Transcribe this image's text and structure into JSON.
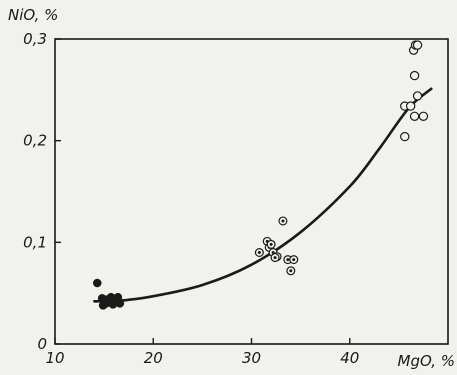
{
  "chart_data": {
    "type": "scatter",
    "title": "",
    "xlabel": "MgO, %",
    "ylabel": "NiO, %",
    "xlim": [
      10,
      50
    ],
    "ylim": [
      0,
      0.3
    ],
    "x_ticks": [
      {
        "value": 10,
        "label": "10"
      },
      {
        "value": 20,
        "label": "20"
      },
      {
        "value": 30,
        "label": "30"
      },
      {
        "value": 40,
        "label": "40"
      }
    ],
    "y_ticks": [
      {
        "value": 0,
        "label": "0"
      },
      {
        "value": 0.1,
        "label": "0,1"
      },
      {
        "value": 0.2,
        "label": "0,2"
      },
      {
        "value": 0.3,
        "label": "0,3"
      }
    ],
    "grid": false,
    "legend": "none",
    "colors": {
      "ink": "#1a1a1a",
      "background": "#f1f1ee"
    },
    "series": [
      {
        "marker": "filled-circle",
        "points": [
          {
            "x": 14.3,
            "y": 0.06
          },
          {
            "x": 14.8,
            "y": 0.045
          },
          {
            "x": 15.2,
            "y": 0.04
          },
          {
            "x": 15.7,
            "y": 0.046
          },
          {
            "x": 16.2,
            "y": 0.043
          },
          {
            "x": 16.6,
            "y": 0.04
          },
          {
            "x": 14.9,
            "y": 0.038
          },
          {
            "x": 15.9,
            "y": 0.039
          },
          {
            "x": 15.4,
            "y": 0.044
          },
          {
            "x": 16.4,
            "y": 0.046
          }
        ]
      },
      {
        "marker": "dotted-circle",
        "points": [
          {
            "x": 30.8,
            "y": 0.09
          },
          {
            "x": 31.6,
            "y": 0.101
          },
          {
            "x": 31.8,
            "y": 0.095
          },
          {
            "x": 32.0,
            "y": 0.098
          },
          {
            "x": 32.2,
            "y": 0.09
          },
          {
            "x": 32.6,
            "y": 0.086
          },
          {
            "x": 32.4,
            "y": 0.085
          },
          {
            "x": 33.2,
            "y": 0.121
          },
          {
            "x": 33.7,
            "y": 0.083
          },
          {
            "x": 34.0,
            "y": 0.072
          },
          {
            "x": 34.3,
            "y": 0.083
          }
        ]
      },
      {
        "marker": "open-circle",
        "points": [
          {
            "x": 46.5,
            "y": 0.289
          },
          {
            "x": 46.7,
            "y": 0.294
          },
          {
            "x": 46.9,
            "y": 0.294
          },
          {
            "x": 46.6,
            "y": 0.264
          },
          {
            "x": 46.9,
            "y": 0.244
          },
          {
            "x": 45.6,
            "y": 0.234
          },
          {
            "x": 46.2,
            "y": 0.234
          },
          {
            "x": 46.6,
            "y": 0.224
          },
          {
            "x": 47.5,
            "y": 0.224
          },
          {
            "x": 45.6,
            "y": 0.204
          }
        ]
      }
    ],
    "fit_curve": {
      "style": "smooth-line",
      "points": [
        {
          "x": 14.0,
          "y": 0.042
        },
        {
          "x": 17.0,
          "y": 0.043
        },
        {
          "x": 20.0,
          "y": 0.047
        },
        {
          "x": 25.0,
          "y": 0.058
        },
        {
          "x": 30.0,
          "y": 0.078
        },
        {
          "x": 35.0,
          "y": 0.11
        },
        {
          "x": 40.0,
          "y": 0.155
        },
        {
          "x": 43.0,
          "y": 0.192
        },
        {
          "x": 46.0,
          "y": 0.232
        },
        {
          "x": 48.3,
          "y": 0.251
        }
      ]
    }
  }
}
